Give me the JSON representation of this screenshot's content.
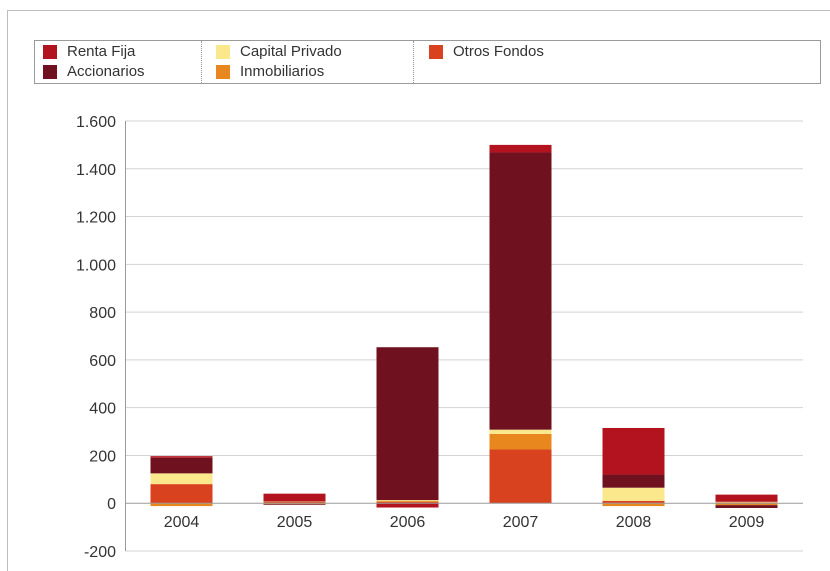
{
  "chart_data": {
    "type": "bar",
    "stacked": true,
    "title": "",
    "xlabel": "",
    "ylabel": "",
    "ylim": [
      -200,
      1600
    ],
    "yticks": [
      -200,
      0,
      200,
      400,
      600,
      800,
      1000,
      1200,
      1400,
      1600
    ],
    "ytick_labels": [
      "-200",
      "0",
      "200",
      "400",
      "600",
      "800",
      "1.000",
      "1.200",
      "1.400",
      "1.600"
    ],
    "categories": [
      "2004",
      "2005",
      "2006",
      "2007",
      "2008",
      "2009"
    ],
    "grid": "horizontal",
    "legend_position": "top",
    "series": [
      {
        "name": "Otros Fondos",
        "color": "#d9421f",
        "values": [
          80,
          5,
          5,
          225,
          10,
          3
        ]
      },
      {
        "name": "Inmobiliarios",
        "color": "#e8871e",
        "values": [
          -12,
          -4,
          4,
          65,
          -12,
          -8
        ]
      },
      {
        "name": "Capital Privado",
        "color": "#fbe88c",
        "values": [
          45,
          2,
          4,
          18,
          55,
          3
        ]
      },
      {
        "name": "Accionarios",
        "color": "#70111f",
        "values": [
          65,
          -3,
          640,
          1160,
          55,
          -12
        ]
      },
      {
        "name": "Renta Fija",
        "color": "#b2131f",
        "values": [
          7,
          33,
          -18,
          32,
          195,
          30
        ]
      }
    ]
  },
  "legend": {
    "columns": [
      [
        {
          "label": "Renta Fija",
          "color": "#b2131f"
        },
        {
          "label": "Accionarios",
          "color": "#70111f"
        }
      ],
      [
        {
          "label": "Capital Privado",
          "color": "#fbe88c"
        },
        {
          "label": "Inmobiliarios",
          "color": "#e8871e"
        }
      ],
      [
        {
          "label": "Otros Fondos",
          "color": "#d9421f"
        }
      ]
    ]
  },
  "colors": {
    "grid": "#d3d3d3",
    "axis": "#9a9a9a",
    "text": "#333333"
  }
}
